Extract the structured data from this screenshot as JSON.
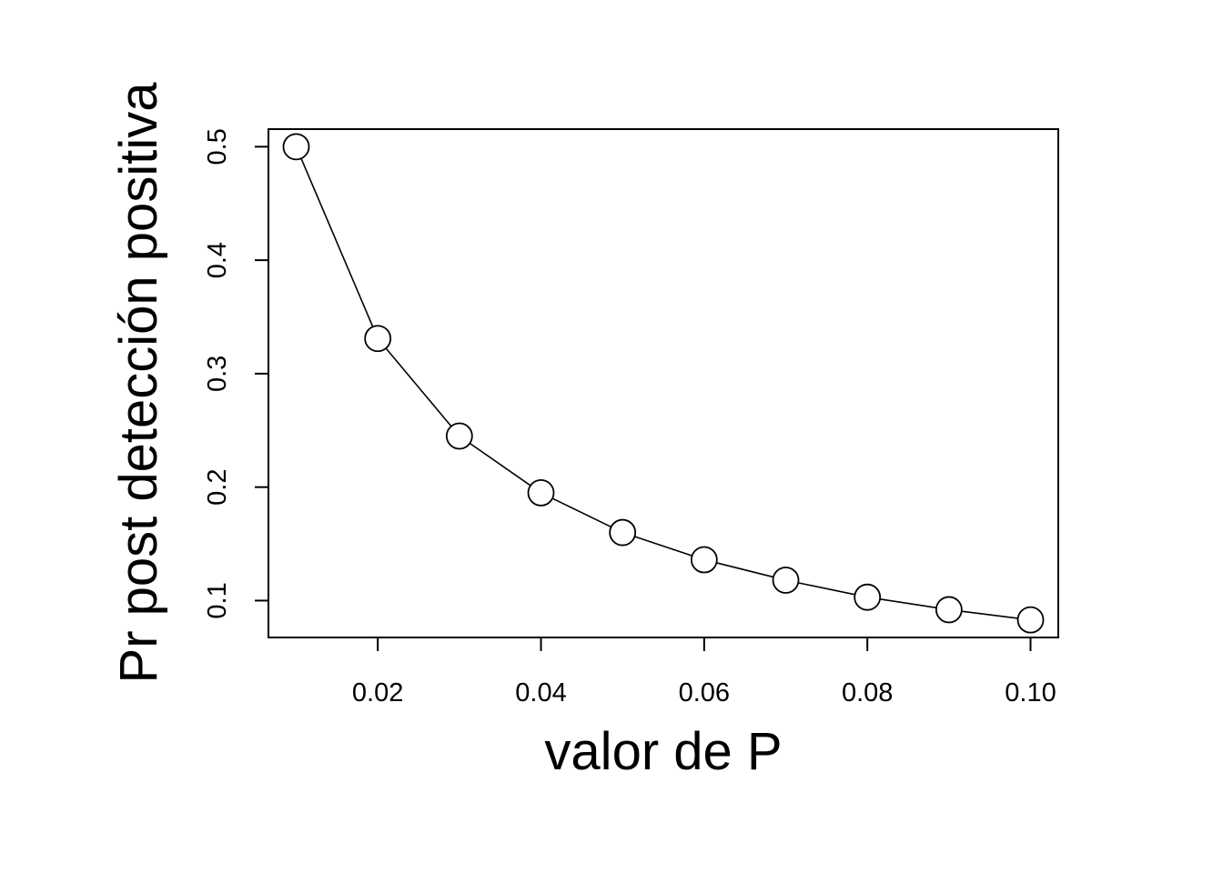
{
  "chart_data": {
    "type": "line",
    "title": "",
    "xlabel": "valor de P",
    "ylabel": "Pr post detección positiva",
    "x": [
      0.01,
      0.02,
      0.03,
      0.04,
      0.05,
      0.06,
      0.07,
      0.08,
      0.09,
      0.1
    ],
    "series": [
      {
        "values": [
          0.5,
          0.331,
          0.245,
          0.195,
          0.16,
          0.136,
          0.118,
          0.103,
          0.092,
          0.083
        ]
      }
    ],
    "xlim": [
      0.0066,
      0.1034
    ],
    "ylim": [
      0.0675,
      0.5155
    ],
    "x_ticks": [
      0.02,
      0.04,
      0.06,
      0.08,
      0.1
    ],
    "x_tick_labels": [
      "0.02",
      "0.04",
      "0.06",
      "0.08",
      "0.10"
    ],
    "y_ticks": [
      0.1,
      0.2,
      0.3,
      0.4,
      0.5
    ],
    "y_tick_labels": [
      "0.1",
      "0.2",
      "0.3",
      "0.4",
      "0.5"
    ],
    "marker": "open-circle",
    "grid": false,
    "colors": {
      "line": "#000000",
      "marker_fill": "#ffffff",
      "marker_stroke": "#000000"
    }
  }
}
